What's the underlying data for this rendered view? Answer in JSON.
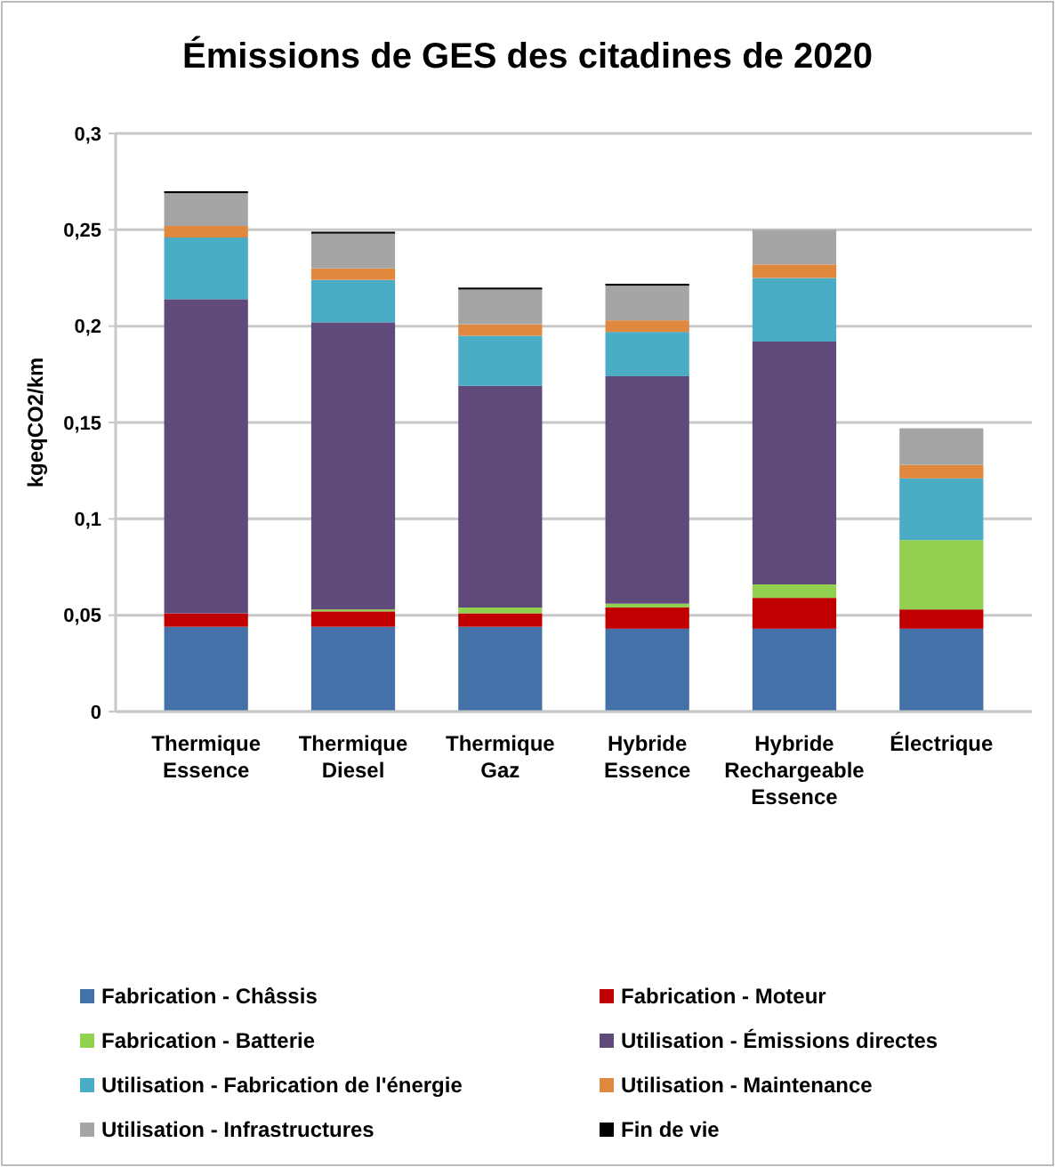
{
  "chart_data": {
    "type": "bar",
    "stacked": true,
    "title": "Émissions de GES des citadines de 2020",
    "ylabel": "kgeqCO2/km",
    "categories": [
      "Thermique Essence",
      "Thermique Diesel",
      "Thermique Gaz",
      "Hybride Essence",
      "Hybride Rechargeable Essence",
      "Électrique"
    ],
    "series": [
      {
        "name": "Fabrication - Châssis",
        "color": "#4472a8",
        "values": [
          0.044,
          0.044,
          0.044,
          0.043,
          0.043,
          0.043
        ]
      },
      {
        "name": "Fabrication - Moteur",
        "color": "#c00000",
        "values": [
          0.007,
          0.008,
          0.007,
          0.011,
          0.016,
          0.01
        ]
      },
      {
        "name": "Fabrication - Batterie",
        "color": "#92d050",
        "values": [
          0,
          0.001,
          0.003,
          0.002,
          0.007,
          0.036
        ]
      },
      {
        "name": "Utilisation - Émissions directes",
        "color": "#604a7b",
        "values": [
          0.163,
          0.149,
          0.115,
          0.118,
          0.126,
          0
        ]
      },
      {
        "name": "Utilisation - Fabrication de l'énergie",
        "color": "#4bacc6",
        "values": [
          0.032,
          0.022,
          0.026,
          0.023,
          0.033,
          0.032
        ]
      },
      {
        "name": "Utilisation - Maintenance",
        "color": "#e0883e",
        "values": [
          0.006,
          0.006,
          0.006,
          0.006,
          0.007,
          0.007
        ]
      },
      {
        "name": "Utilisation - Infrastructures",
        "color": "#a5a5a5",
        "values": [
          0.017,
          0.018,
          0.018,
          0.018,
          0.018,
          0.019
        ]
      },
      {
        "name": "Fin de vie",
        "color": "#000000",
        "values": [
          0.001,
          0.001,
          0.001,
          0.001,
          0,
          0
        ]
      }
    ],
    "ylim": [
      0,
      0.3
    ],
    "yticks": [
      0,
      {
        "value": 0.05,
        "label": "0,05"
      },
      {
        "value": 0.1,
        "label": "0,1"
      },
      {
        "value": 0.15,
        "label": "0,15"
      },
      {
        "value": 0.2,
        "label": "0,2"
      },
      {
        "value": 0.25,
        "label": "0,25"
      },
      {
        "value": 0.3,
        "label": "0,3"
      }
    ],
    "grid": "y",
    "legend": "bottom"
  }
}
